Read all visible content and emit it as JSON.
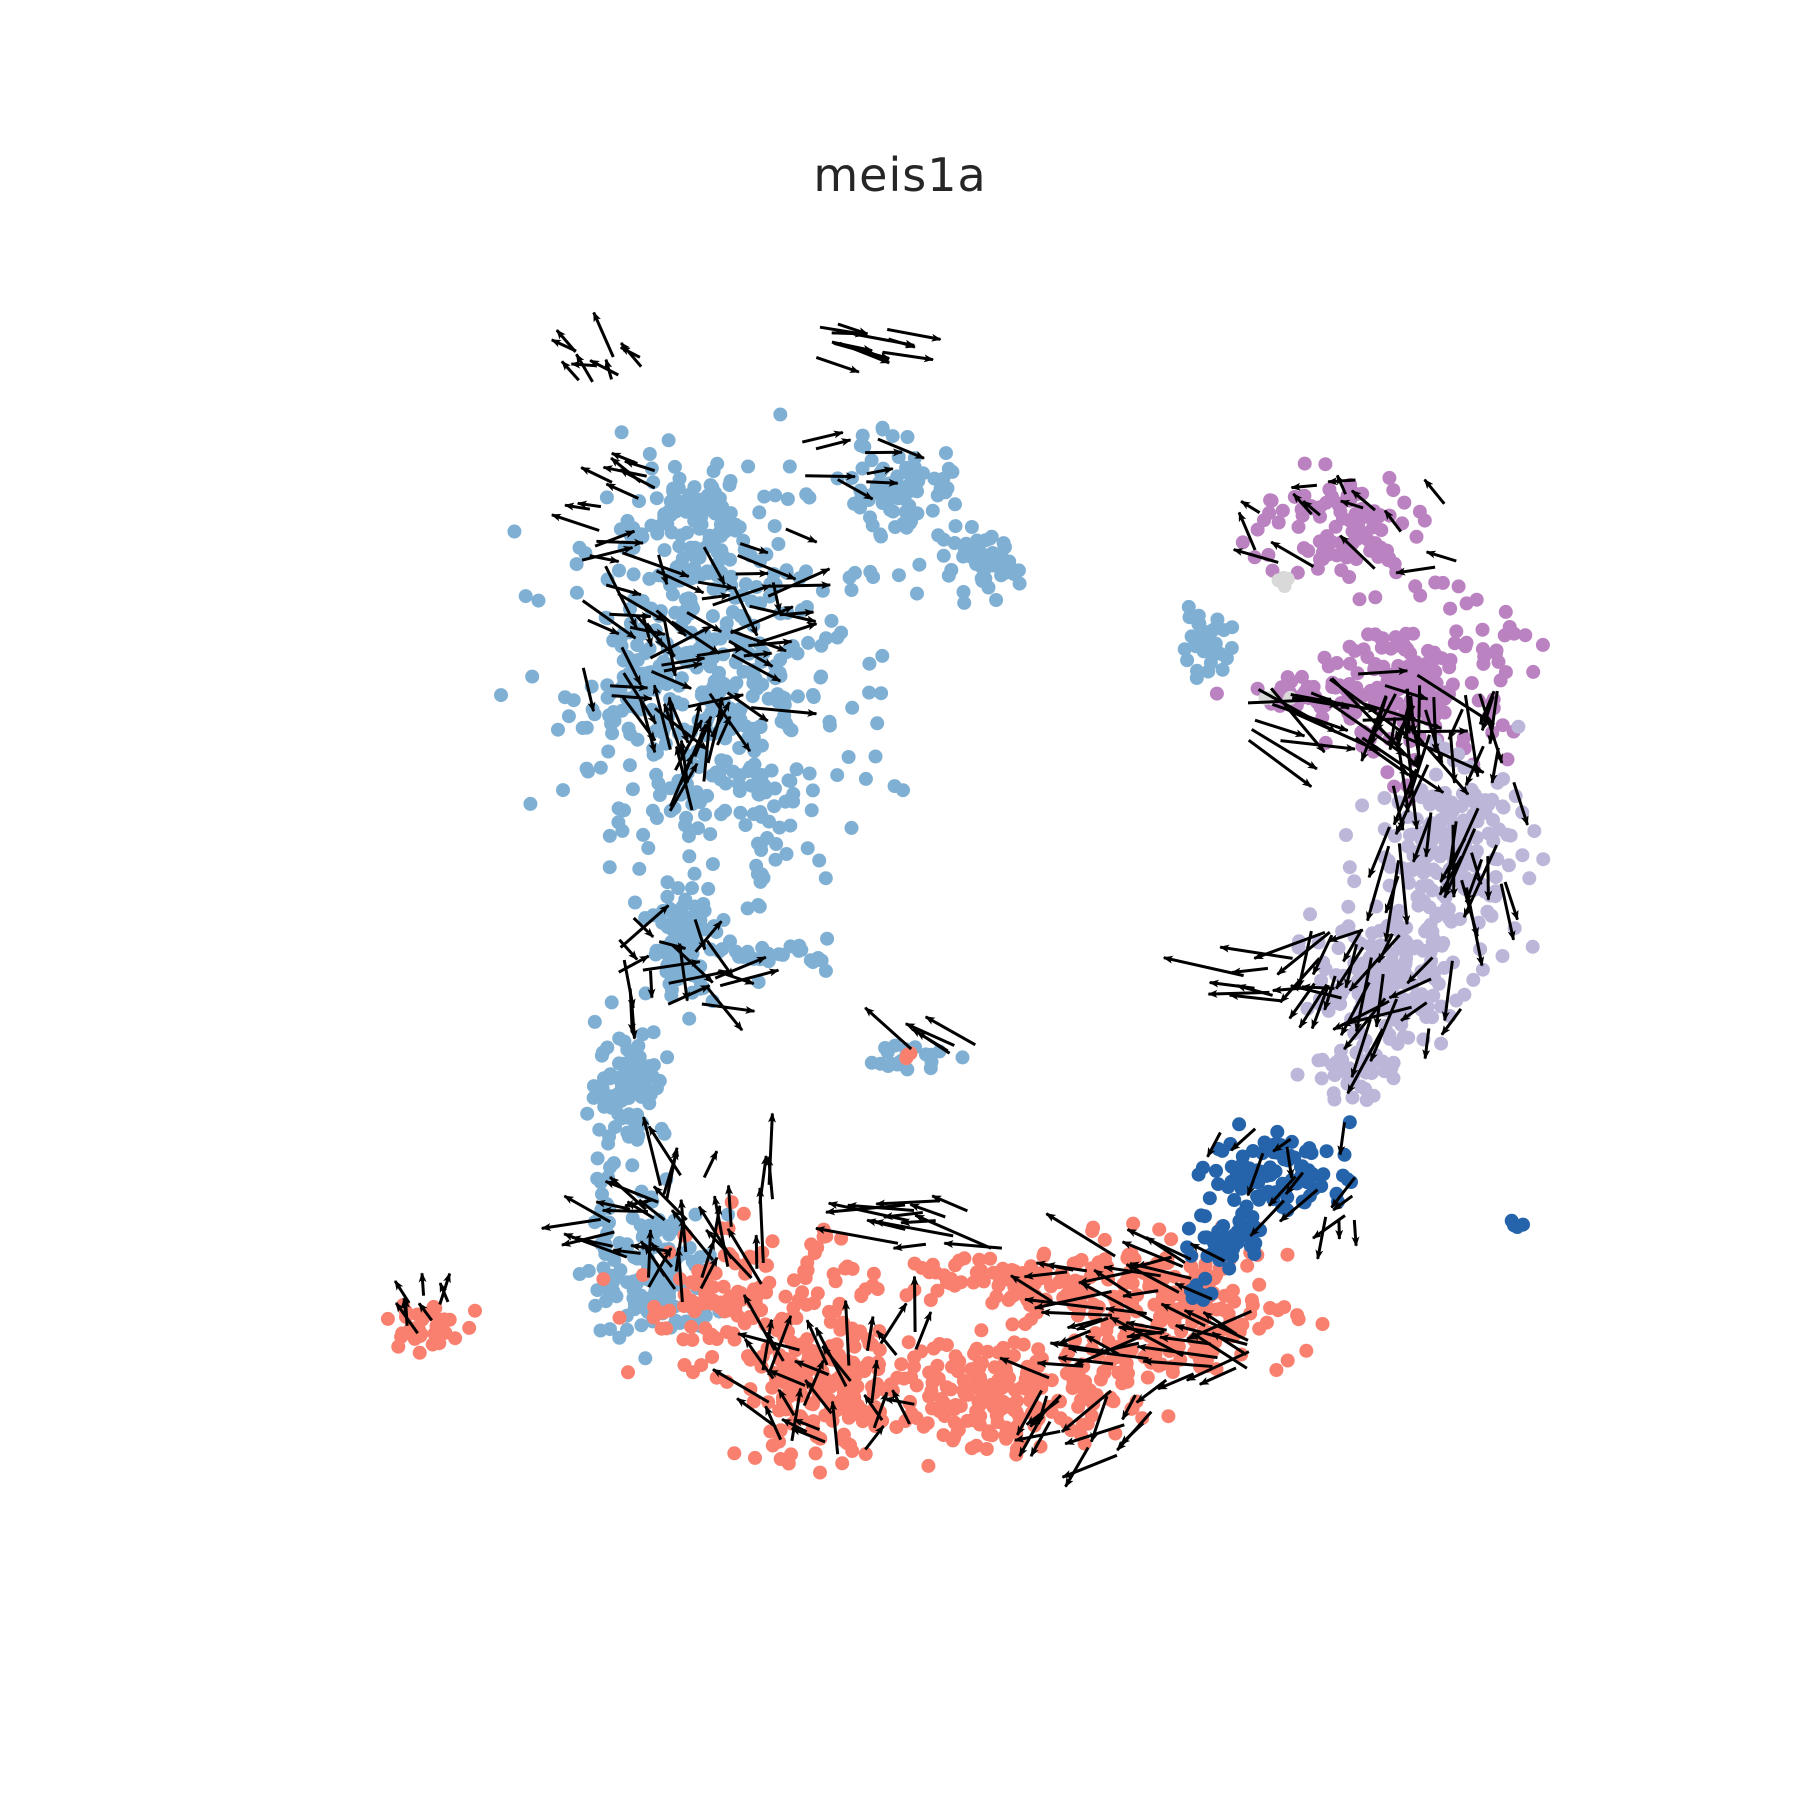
{
  "chart_data": {
    "type": "scatter",
    "title": "meis1a",
    "xlabel": "",
    "ylabel": "",
    "axes_visible": false,
    "grid": false,
    "legend": "none",
    "overlay": "velocity arrows",
    "xlim": [
      0,
      100
    ],
    "ylim": [
      0,
      100
    ],
    "arrow_color": "#000000",
    "series": [
      {
        "color": "#7fb0d4",
        "regions": [
          {
            "x": 33,
            "y": 68,
            "rx": 10,
            "ry": 13,
            "n": 420
          },
          {
            "x": 31,
            "y": 82,
            "rx": 5,
            "ry": 3,
            "n": 60
          },
          {
            "x": 33,
            "y": 78,
            "rx": 2,
            "ry": 3,
            "n": 40
          },
          {
            "x": 48,
            "y": 83,
            "rx": 4,
            "ry": 4,
            "n": 80
          },
          {
            "x": 54,
            "y": 77,
            "rx": 2.5,
            "ry": 2,
            "n": 60
          },
          {
            "x": 71,
            "y": 71,
            "rx": 2,
            "ry": 2,
            "n": 35
          },
          {
            "x": 28,
            "y": 68,
            "rx": 2,
            "ry": 2,
            "n": 35
          },
          {
            "x": 37,
            "y": 56,
            "rx": 1,
            "ry": 7,
            "n": 30
          },
          {
            "x": 31,
            "y": 48,
            "rx": 2.2,
            "ry": 4.2,
            "n": 90
          },
          {
            "x": 27,
            "y": 37,
            "rx": 2.4,
            "ry": 4,
            "n": 90
          },
          {
            "x": 29,
            "y": 22,
            "rx": 4,
            "ry": 5,
            "n": 130
          },
          {
            "x": 25,
            "y": 27,
            "rx": 0.8,
            "ry": 6,
            "n": 25
          },
          {
            "x": 38,
            "y": 47,
            "rx": 4,
            "ry": 1,
            "n": 25
          },
          {
            "x": 48,
            "y": 39,
            "rx": 3,
            "ry": 1,
            "n": 20
          }
        ]
      },
      {
        "color": "#f9806e",
        "regions": [
          {
            "x": 36,
            "y": 20,
            "rx": 8,
            "ry": 5,
            "n": 140
          },
          {
            "x": 42,
            "y": 13,
            "rx": 6,
            "ry": 5,
            "n": 180
          },
          {
            "x": 56,
            "y": 13,
            "rx": 8,
            "ry": 4,
            "n": 190
          },
          {
            "x": 68,
            "y": 19,
            "rx": 9,
            "ry": 5,
            "n": 240
          },
          {
            "x": 56,
            "y": 22,
            "rx": 8,
            "ry": 2,
            "n": 80
          },
          {
            "x": 11,
            "y": 18,
            "rx": 2.5,
            "ry": 2,
            "n": 40
          },
          {
            "x": 48,
            "y": 39,
            "rx": 1,
            "ry": 0.6,
            "n": 3
          }
        ]
      },
      {
        "color": "#ba82c0",
        "regions": [
          {
            "x": 81,
            "y": 80,
            "rx": 6,
            "ry": 4,
            "n": 90
          },
          {
            "x": 88,
            "y": 68,
            "rx": 6,
            "ry": 6,
            "n": 180
          },
          {
            "x": 80,
            "y": 67,
            "rx": 6,
            "ry": 1.5,
            "n": 45
          }
        ]
      },
      {
        "color": "#bcb7d9",
        "regions": [
          {
            "x": 90,
            "y": 55,
            "rx": 5,
            "ry": 6,
            "n": 200
          },
          {
            "x": 85,
            "y": 45,
            "rx": 5,
            "ry": 4,
            "n": 160
          },
          {
            "x": 82,
            "y": 38,
            "rx": 3,
            "ry": 2,
            "n": 40
          }
        ]
      },
      {
        "color": "#2563aa",
        "regions": [
          {
            "x": 77,
            "y": 30,
            "rx": 5,
            "ry": 3,
            "n": 90
          },
          {
            "x": 73,
            "y": 25,
            "rx": 2.5,
            "ry": 2,
            "n": 45
          },
          {
            "x": 71,
            "y": 21,
            "rx": 1,
            "ry": 1,
            "n": 8
          },
          {
            "x": 95,
            "y": 26,
            "rx": 0.6,
            "ry": 0.3,
            "n": 4
          }
        ]
      },
      {
        "color": "#d9d9d9",
        "regions": [
          {
            "x": 77,
            "y": 76,
            "rx": 0.8,
            "ry": 0.5,
            "n": 4
          },
          {
            "x": 77,
            "y": 67,
            "rx": 0.8,
            "ry": 0.5,
            "n": 3
          }
        ]
      }
    ],
    "arrow_fields": [
      {
        "x": 31,
        "y": 73,
        "rx": 8,
        "ry": 7,
        "n": 60,
        "angle": -25,
        "spread": 55,
        "len": 4.2
      },
      {
        "x": 26,
        "y": 82,
        "rx": 3,
        "ry": 3,
        "n": 10,
        "angle": 160,
        "spread": 30,
        "len": 3
      },
      {
        "x": 25,
        "y": 92,
        "rx": 3,
        "ry": 2,
        "n": 10,
        "angle": 140,
        "spread": 40,
        "len": 3
      },
      {
        "x": 44,
        "y": 95,
        "rx": 3,
        "ry": 2,
        "n": 12,
        "angle": -10,
        "spread": 15,
        "len": 4
      },
      {
        "x": 42,
        "y": 85,
        "rx": 4,
        "ry": 2,
        "n": 8,
        "angle": 0,
        "spread": 30,
        "len": 3
      },
      {
        "x": 31,
        "y": 61,
        "rx": 3,
        "ry": 4,
        "n": 16,
        "angle": 85,
        "spread": 25,
        "len": 4
      },
      {
        "x": 30,
        "y": 46,
        "rx": 4,
        "ry": 4,
        "n": 22,
        "angle": -30,
        "spread": 80,
        "len": 4
      },
      {
        "x": 33,
        "y": 25,
        "rx": 5,
        "ry": 5,
        "n": 28,
        "angle": 95,
        "spread": 40,
        "len": 4.5
      },
      {
        "x": 27,
        "y": 26,
        "rx": 3,
        "ry": 3,
        "n": 14,
        "angle": 165,
        "spread": 30,
        "len": 4
      },
      {
        "x": 43,
        "y": 13,
        "rx": 6,
        "ry": 5,
        "n": 34,
        "angle": 110,
        "spread": 60,
        "len": 4
      },
      {
        "x": 52,
        "y": 26,
        "rx": 5,
        "ry": 2,
        "n": 14,
        "angle": 170,
        "spread": 20,
        "len": 5
      },
      {
        "x": 67,
        "y": 19,
        "rx": 8,
        "ry": 5,
        "n": 50,
        "angle": 175,
        "spread": 30,
        "len": 5
      },
      {
        "x": 64,
        "y": 11,
        "rx": 6,
        "ry": 3,
        "n": 16,
        "angle": -140,
        "spread": 40,
        "len": 4
      },
      {
        "x": 11,
        "y": 19,
        "rx": 2,
        "ry": 2,
        "n": 8,
        "angle": 90,
        "spread": 40,
        "len": 2.5
      },
      {
        "x": 83,
        "y": 80,
        "rx": 8,
        "ry": 4,
        "n": 16,
        "angle": 150,
        "spread": 40,
        "len": 3
      },
      {
        "x": 81,
        "y": 66,
        "rx": 7,
        "ry": 3,
        "n": 26,
        "angle": -25,
        "spread": 30,
        "len": 6
      },
      {
        "x": 90,
        "y": 60,
        "rx": 5,
        "ry": 8,
        "n": 50,
        "angle": -95,
        "spread": 25,
        "len": 5
      },
      {
        "x": 85,
        "y": 45,
        "rx": 6,
        "ry": 4,
        "n": 30,
        "angle": -130,
        "spread": 40,
        "len": 4.5
      },
      {
        "x": 78,
        "y": 45,
        "rx": 4,
        "ry": 2,
        "n": 10,
        "angle": 175,
        "spread": 15,
        "len": 5
      },
      {
        "x": 78,
        "y": 30,
        "rx": 6,
        "ry": 4,
        "n": 16,
        "angle": -120,
        "spread": 40,
        "len": 3
      },
      {
        "x": 51,
        "y": 39,
        "rx": 3,
        "ry": 1,
        "n": 5,
        "angle": 150,
        "spread": 15,
        "len": 4
      }
    ]
  }
}
